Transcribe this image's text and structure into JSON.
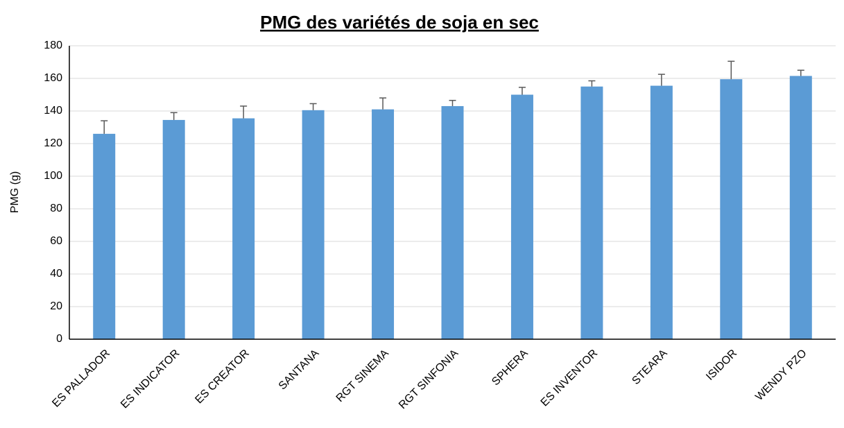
{
  "chart_data": {
    "type": "bar",
    "title": "PMG des variétés de soja en sec",
    "y_label": "PMG (g)",
    "categories": [
      "ES PALLADOR",
      "ES INDICATOR",
      "ES CREATOR",
      "SANTANA",
      "RGT SINEMA",
      "RGT SINFONIA",
      "SPHERA",
      "ES INVENTOR",
      "STEARA",
      "ISIDOR",
      "WENDY PZO"
    ],
    "values": [
      126,
      134.5,
      135.5,
      140.5,
      141,
      143,
      150,
      155,
      155.5,
      159.5,
      161.5
    ],
    "errors": [
      8,
      4.5,
      7.5,
      4,
      7,
      3.5,
      4.5,
      3.5,
      7,
      11,
      3.5
    ],
    "color": "#5b9bd5",
    "error_color": "#595959",
    "ylim": [
      0,
      180
    ],
    "yticks": [
      0,
      20,
      40,
      60,
      80,
      100,
      120,
      140,
      160,
      180
    ],
    "grid": true
  }
}
